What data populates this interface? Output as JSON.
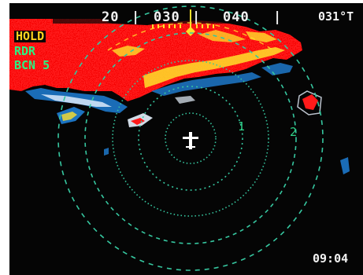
{
  "heading_tape": {
    "labels": [
      "20",
      "030",
      "040"
    ],
    "readout": "031°T"
  },
  "mode_panel": {
    "hold": "HOLD",
    "radar": "RDR",
    "beacon": "BCN 5"
  },
  "range_rings": {
    "labels": [
      "1",
      "2"
    ]
  },
  "clock": "09:04",
  "colors": {
    "background": "#050505",
    "weather_heavy": "#ff1a1a",
    "weather_moderate": "#ffe02a",
    "weather_light": "#1f7fd6",
    "range_ring": "#36c7a0",
    "mode_active": "#ffd21f",
    "mode_inactive": "#2cf081",
    "aircraft_symbol": "#ffffff"
  },
  "icons": {
    "aircraft": "aircraft-symbol-icon",
    "lubber": "heading-lubber-icon"
  }
}
